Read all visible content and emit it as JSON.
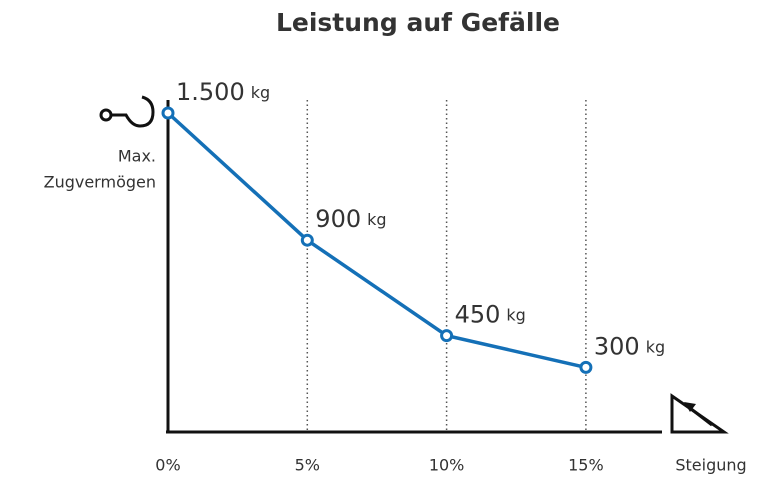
{
  "chart_data": {
    "type": "line",
    "title": "Leistung auf Gefälle",
    "y_label": [
      "Max.",
      "Zugvermögen"
    ],
    "x_label": "Steigung",
    "categories": [
      "0%",
      "5%",
      "10%",
      "15%"
    ],
    "values": [
      1500,
      900,
      450,
      300
    ],
    "value_labels": [
      "1.500",
      "900",
      "450",
      "300"
    ],
    "unit": "kg",
    "color": "#1470b7",
    "ylim": [
      0,
      1500
    ],
    "grid": true
  }
}
